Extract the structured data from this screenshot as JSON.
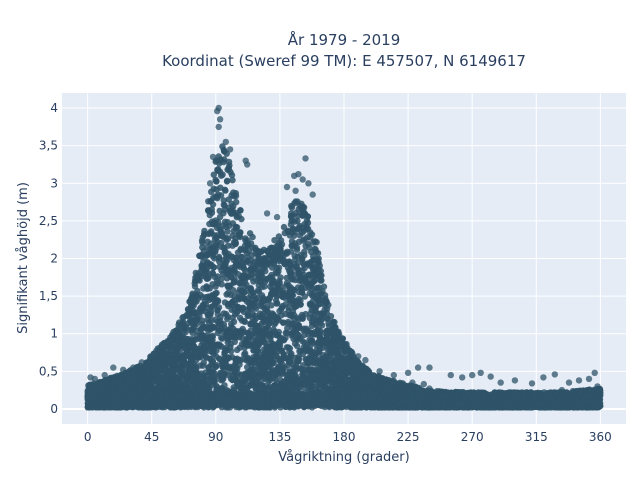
{
  "chart_data": {
    "type": "scatter",
    "title_line1": "År 1979 - 2019",
    "title_line2": "Koordinat (Sweref 99 TM): E 457507, N 6149617",
    "xlabel": "Vågriktning (grader)",
    "ylabel": "Signifikant våghöjd (m)",
    "xlim": [
      -18,
      378
    ],
    "ylim": [
      -0.2,
      4.2
    ],
    "x_ticks": [
      0,
      45,
      90,
      135,
      180,
      225,
      270,
      315,
      360
    ],
    "x_tick_labels": [
      "0",
      "45",
      "90",
      "135",
      "180",
      "225",
      "270",
      "315",
      "360"
    ],
    "y_ticks": [
      0,
      0.5,
      1,
      1.5,
      2,
      2.5,
      3,
      3.5,
      4
    ],
    "y_tick_labels": [
      "0",
      "0,5",
      "1",
      "1,5",
      "2",
      "2,5",
      "3",
      "3,5",
      "4"
    ],
    "grid": true,
    "marker_color": "#2f5468",
    "plot_background": "#e5ecf6",
    "envelope": {
      "x": [
        0,
        10,
        20,
        30,
        40,
        50,
        60,
        70,
        75,
        80,
        85,
        90,
        95,
        100,
        105,
        110,
        115,
        120,
        125,
        130,
        135,
        140,
        145,
        150,
        155,
        160,
        165,
        170,
        175,
        180,
        185,
        190,
        200,
        210,
        220,
        230,
        240,
        270,
        300,
        330,
        360
      ],
      "y_max": [
        0.3,
        0.35,
        0.42,
        0.5,
        0.6,
        0.8,
        1.0,
        1.3,
        1.7,
        2.2,
        2.8,
        3.3,
        3.5,
        3.3,
        2.8,
        2.4,
        2.3,
        2.1,
        2.1,
        2.2,
        2.3,
        2.5,
        2.8,
        2.8,
        2.6,
        2.3,
        1.7,
        1.3,
        1.05,
        0.9,
        0.75,
        0.6,
        0.45,
        0.38,
        0.33,
        0.28,
        0.22,
        0.2,
        0.2,
        0.2,
        0.25
      ]
    },
    "outliers": [
      {
        "x": 92,
        "y": 4.0
      },
      {
        "x": 91,
        "y": 3.96
      },
      {
        "x": 93,
        "y": 3.85
      },
      {
        "x": 92,
        "y": 3.75
      },
      {
        "x": 97,
        "y": 3.55
      },
      {
        "x": 100,
        "y": 3.45
      },
      {
        "x": 112,
        "y": 3.25
      },
      {
        "x": 111,
        "y": 3.3
      },
      {
        "x": 153,
        "y": 3.33
      },
      {
        "x": 148,
        "y": 3.12
      },
      {
        "x": 151,
        "y": 3.05
      },
      {
        "x": 145,
        "y": 3.1
      },
      {
        "x": 155,
        "y": 3.0
      },
      {
        "x": 140,
        "y": 2.95
      },
      {
        "x": 158,
        "y": 2.85
      },
      {
        "x": 146,
        "y": 2.9
      },
      {
        "x": 126,
        "y": 2.6
      },
      {
        "x": 133,
        "y": 2.55
      },
      {
        "x": 88,
        "y": 3.35
      },
      {
        "x": 86,
        "y": 3.0
      },
      {
        "x": 195,
        "y": 0.65
      },
      {
        "x": 190,
        "y": 0.7
      },
      {
        "x": 225,
        "y": 0.48
      },
      {
        "x": 232,
        "y": 0.55
      },
      {
        "x": 228,
        "y": 0.35
      },
      {
        "x": 236,
        "y": 0.33
      },
      {
        "x": 240,
        "y": 0.27
      },
      {
        "x": 255,
        "y": 0.45
      },
      {
        "x": 263,
        "y": 0.42
      },
      {
        "x": 270,
        "y": 0.45
      },
      {
        "x": 276,
        "y": 0.48
      },
      {
        "x": 283,
        "y": 0.43
      },
      {
        "x": 290,
        "y": 0.35
      },
      {
        "x": 300,
        "y": 0.38
      },
      {
        "x": 312,
        "y": 0.34
      },
      {
        "x": 320,
        "y": 0.42
      },
      {
        "x": 328,
        "y": 0.46
      },
      {
        "x": 338,
        "y": 0.35
      },
      {
        "x": 345,
        "y": 0.38
      },
      {
        "x": 352,
        "y": 0.4
      },
      {
        "x": 356,
        "y": 0.48
      },
      {
        "x": 358,
        "y": 0.3
      },
      {
        "x": 2,
        "y": 0.42
      },
      {
        "x": 5,
        "y": 0.4
      },
      {
        "x": 12,
        "y": 0.45
      },
      {
        "x": 18,
        "y": 0.55
      },
      {
        "x": 25,
        "y": 0.52
      },
      {
        "x": 32,
        "y": 0.55
      },
      {
        "x": 38,
        "y": 0.62
      },
      {
        "x": 205,
        "y": 0.5
      },
      {
        "x": 215,
        "y": 0.45
      },
      {
        "x": 240,
        "y": 0.55
      },
      {
        "x": 228,
        "y": 0.2
      },
      {
        "x": 300,
        "y": 0.22
      },
      {
        "x": 333,
        "y": 0.25
      }
    ]
  }
}
